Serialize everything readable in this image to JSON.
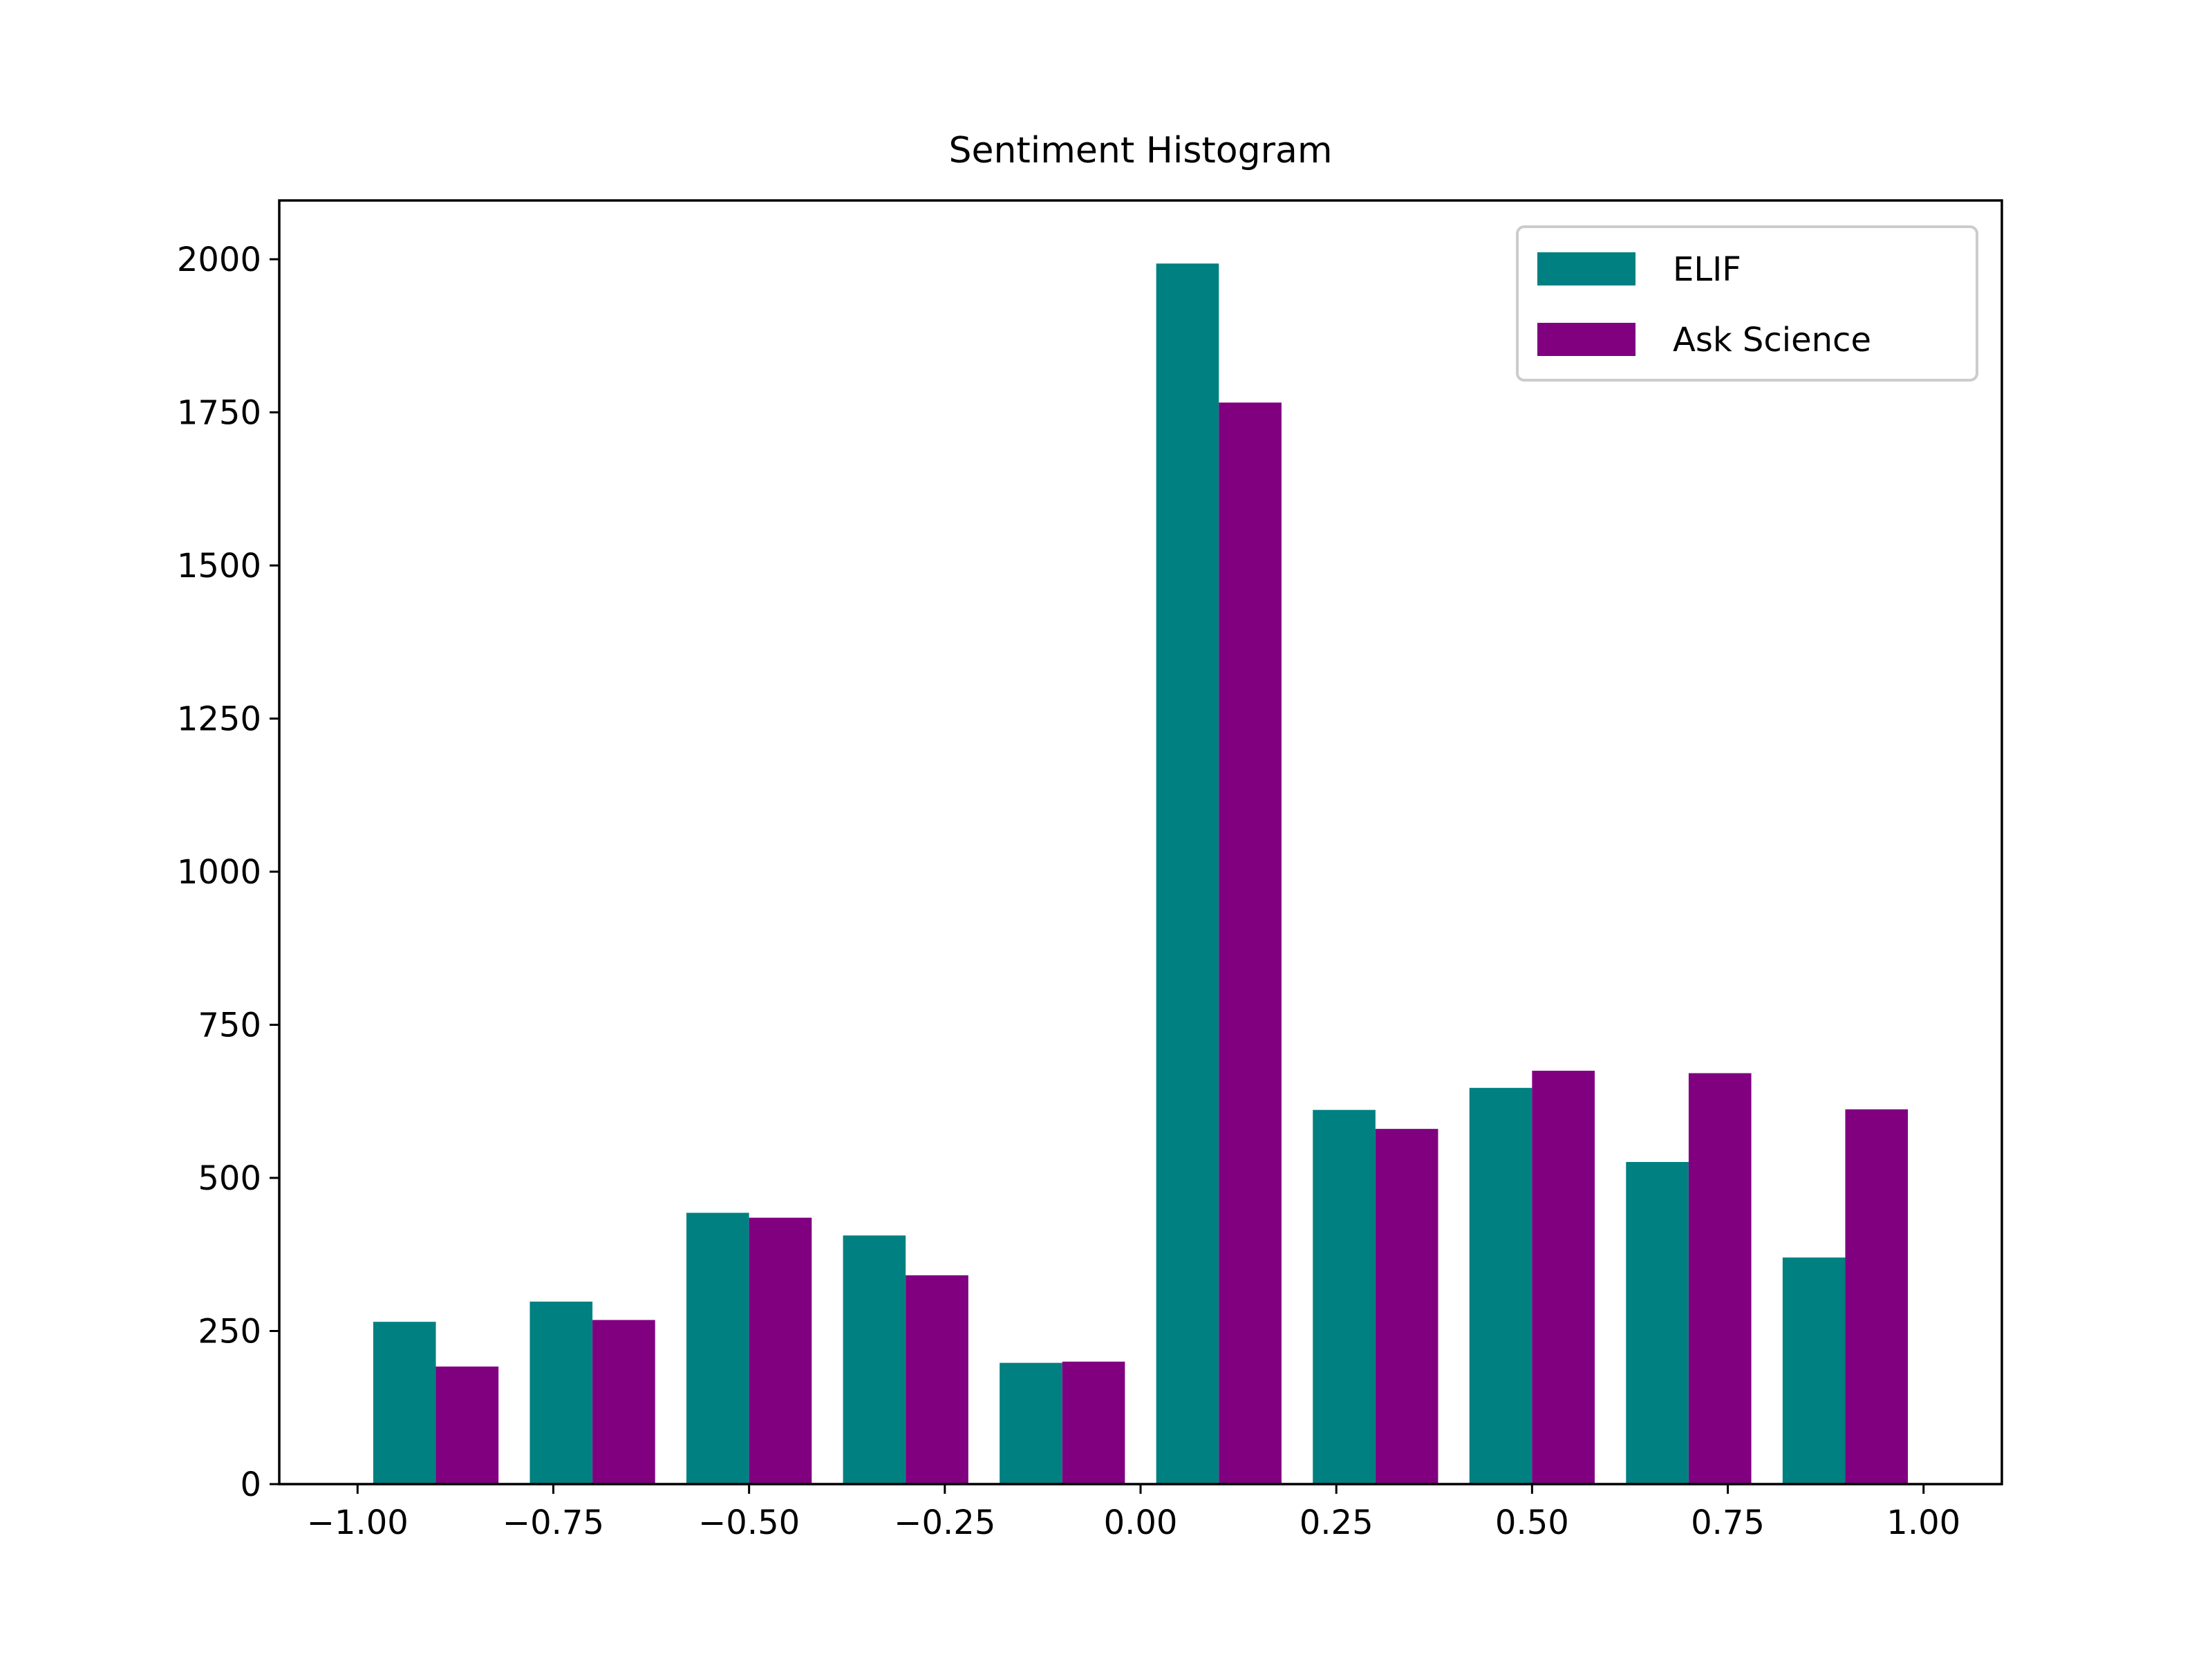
{
  "chart_data": {
    "type": "bar",
    "title": "Sentiment Histogram",
    "xlabel": "",
    "ylabel": "",
    "xlim": [
      -1.1,
      1.1
    ],
    "ylim": [
      0,
      2096
    ],
    "bin_edges": [
      -1.0,
      -0.8,
      -0.6,
      -0.4,
      -0.2,
      0.0,
      0.2,
      0.4,
      0.6,
      0.8,
      1.0
    ],
    "x_ticks": [
      "−1.00",
      "−0.75",
      "−0.50",
      "−0.25",
      "0.00",
      "0.25",
      "0.50",
      "0.75",
      "1.00"
    ],
    "x_tick_values": [
      -1.0,
      -0.75,
      -0.5,
      -0.25,
      0.0,
      0.25,
      0.5,
      0.75,
      1.0
    ],
    "y_ticks": [
      "0",
      "250",
      "500",
      "750",
      "1000",
      "1250",
      "1500",
      "1750",
      "2000"
    ],
    "y_tick_values": [
      0,
      250,
      500,
      750,
      1000,
      1250,
      1500,
      1750,
      2000
    ],
    "grid": false,
    "legend_position": "top-right",
    "series": [
      {
        "name": "ELIF",
        "color": "#008080",
        "values": [
          265,
          298,
          443,
          406,
          198,
          1993,
          611,
          647,
          526,
          370
        ]
      },
      {
        "name": "Ask Science",
        "color": "#800080",
        "values": [
          192,
          268,
          435,
          341,
          200,
          1766,
          580,
          675,
          671,
          612
        ]
      }
    ]
  }
}
